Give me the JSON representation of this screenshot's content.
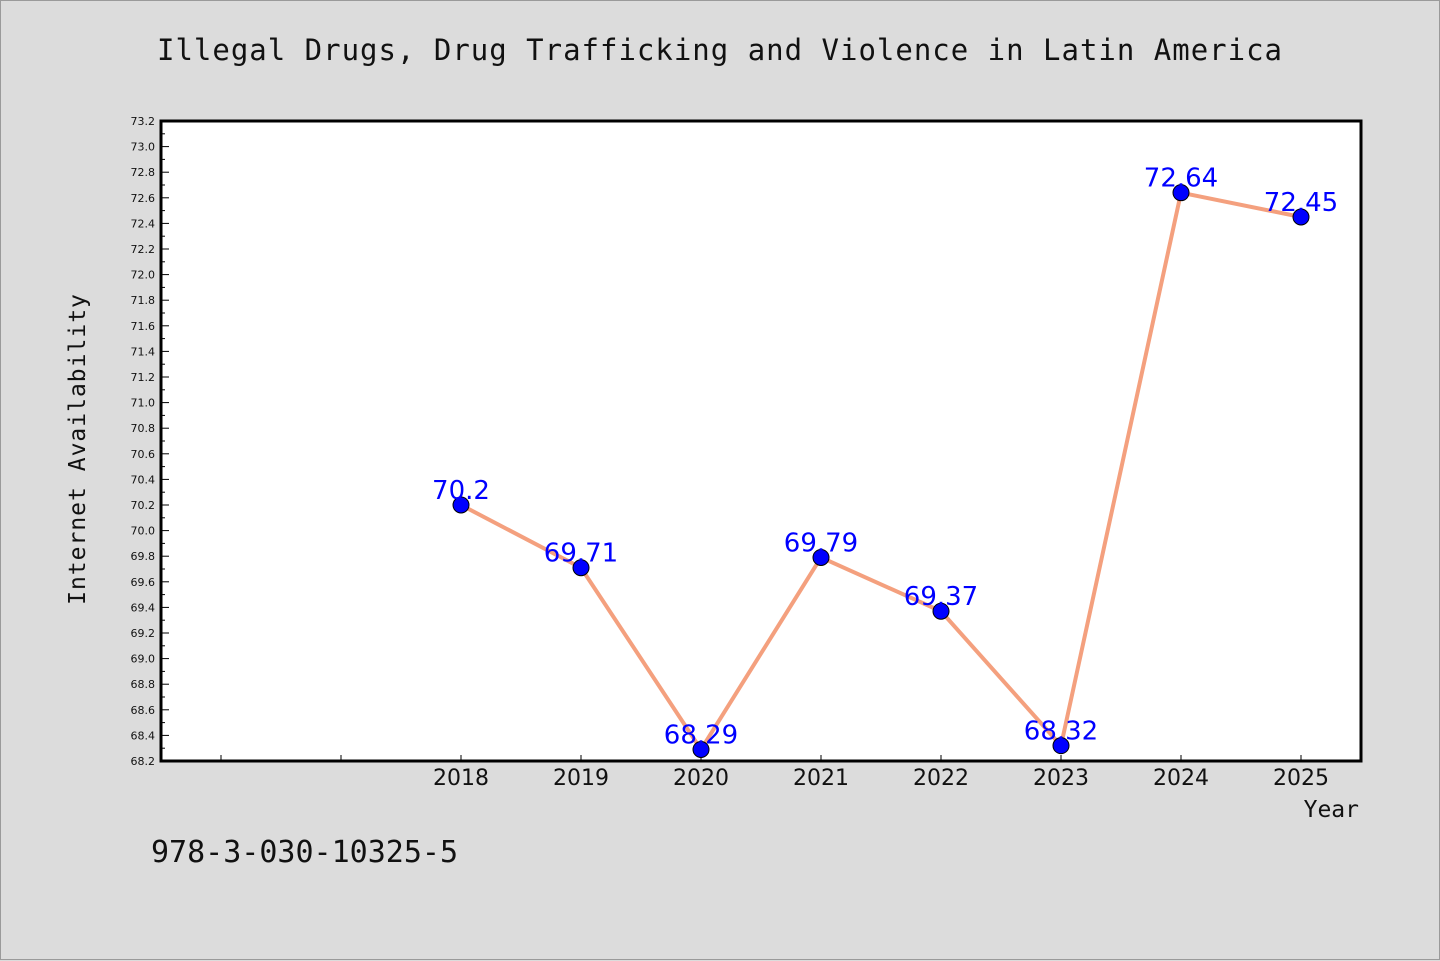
{
  "chart_data": {
    "type": "line",
    "title": "Illegal Drugs, Drug Trafficking and Violence in Latin America",
    "xlabel": "Year",
    "ylabel": "Internet Availability",
    "categories": [
      "2018",
      "2019",
      "2020",
      "2021",
      "2022",
      "2023",
      "2024",
      "2025"
    ],
    "values": [
      70.2,
      69.71,
      68.29,
      69.79,
      69.37,
      68.32,
      72.64,
      72.45
    ],
    "data_labels": [
      "70.2",
      "69.71",
      "68.29",
      "69.79",
      "69.37",
      "68.32",
      "72.64",
      "72.45"
    ],
    "ylim": [
      68.2,
      73.2
    ],
    "yticks": [
      "68.2",
      "68.4",
      "68.6",
      "68.8",
      "69.0",
      "69.2",
      "69.4",
      "69.6",
      "69.8",
      "70.0",
      "70.2",
      "70.4",
      "70.6",
      "70.8",
      "71.0",
      "71.2",
      "71.4",
      "71.6",
      "71.8",
      "72.0",
      "72.2",
      "72.4",
      "72.6",
      "72.8",
      "73.0",
      "73.2"
    ],
    "grid": false,
    "line_color": "#f4a07e",
    "marker_color": "#0000ff",
    "label_color": "#0000ff"
  },
  "footer": {
    "isbn": "978-3-030-10325-5"
  }
}
